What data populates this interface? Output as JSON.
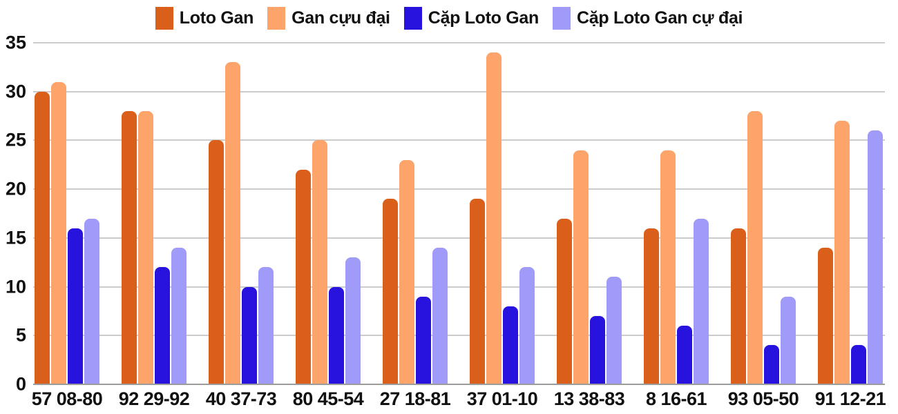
{
  "chart_data": {
    "type": "bar",
    "title": "",
    "xlabel": "",
    "ylabel": "",
    "categories": [
      "57 08-80",
      "92 29-92",
      "40 37-73",
      "80 45-54",
      "27 18-81",
      "37 01-10",
      "13 38-83",
      "8 16-61",
      "93 05-50",
      "91 12-21"
    ],
    "series": [
      {
        "name": "Loto Gan",
        "color": "#d95f1a",
        "values": [
          30,
          28,
          25,
          22,
          19,
          19,
          17,
          16,
          16,
          14
        ]
      },
      {
        "name": "Gan cựu đại",
        "color": "#fda46b",
        "values": [
          31,
          28,
          33,
          25,
          23,
          34,
          24,
          24,
          28,
          27
        ]
      },
      {
        "name": "Cặp Loto Gan",
        "color": "#2713dd",
        "values": [
          16,
          12,
          10,
          10,
          9,
          8,
          7,
          6,
          4,
          4
        ]
      },
      {
        "name": "Cặp Loto Gan cự đại",
        "color": "#a09af8",
        "values": [
          17,
          14,
          12,
          13,
          14,
          12,
          11,
          17,
          9,
          26
        ]
      }
    ],
    "ylim": [
      0,
      35
    ],
    "yticks": [
      0,
      5,
      10,
      15,
      20,
      25,
      30,
      35
    ],
    "grid": true,
    "legend_position": "top",
    "gridline_color": "#cccccc",
    "baseline_color": "#9b9b9b",
    "text_color": "#111111",
    "background_color": "#ffffff"
  }
}
